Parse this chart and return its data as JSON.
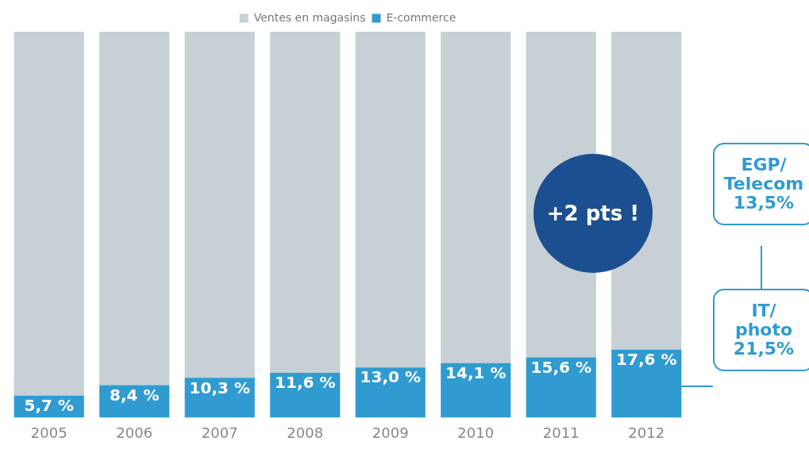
{
  "chart_data": {
    "type": "bar",
    "stacked": true,
    "categories": [
      "2005",
      "2006",
      "2007",
      "2008",
      "2009",
      "2010",
      "2011",
      "2012"
    ],
    "series": [
      {
        "name": "E-commerce",
        "color": "#2f9bd1",
        "values": [
          5.7,
          8.4,
          10.3,
          11.6,
          13.0,
          14.1,
          15.6,
          17.6
        ],
        "value_labels": [
          "5,7 %",
          "8,4 %",
          "10,3 %",
          "11,6 %",
          "13,0 %",
          "14,1 %",
          "15,6 %",
          "17,6 %"
        ]
      },
      {
        "name": "Ventes en magasins",
        "color": "#c6d0d5",
        "values": [
          94.3,
          91.6,
          89.7,
          88.4,
          87.0,
          85.9,
          84.4,
          82.4
        ]
      }
    ],
    "legend": "top",
    "grid": false,
    "tick_labels": "x",
    "annotations": [
      "+2 pts !",
      "EGP/\nTelecom\n13,5%",
      "IT/\nphoto\n21,5%"
    ]
  }
}
